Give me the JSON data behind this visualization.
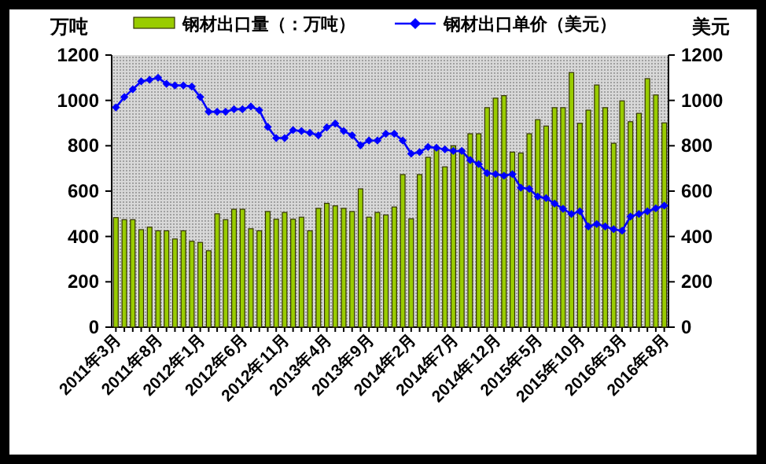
{
  "chart_data": {
    "type": "bar",
    "ylabel": "万吨",
    "y2label": "美元",
    "ylim": [
      0,
      1200
    ],
    "yticks": [
      0,
      200,
      400,
      600,
      800,
      1000,
      1200
    ],
    "y2lim": [
      0,
      1200
    ],
    "y2ticks": [
      0,
      200,
      400,
      600,
      800,
      1000,
      1200
    ],
    "legend": "top",
    "categories": [
      "2011年3月",
      null,
      null,
      null,
      null,
      "2011年8月",
      null,
      null,
      null,
      null,
      "2012年1月",
      null,
      null,
      null,
      null,
      "2012年6月",
      null,
      null,
      null,
      null,
      "2012年11月",
      null,
      null,
      null,
      null,
      "2013年4月",
      null,
      null,
      null,
      null,
      "2013年9月",
      null,
      null,
      null,
      null,
      "2014年2月",
      null,
      null,
      null,
      null,
      "2014年7月",
      null,
      null,
      null,
      null,
      "2014年12月",
      null,
      null,
      null,
      null,
      "2015年5月",
      null,
      null,
      null,
      null,
      "2015年10月",
      null,
      null,
      null,
      null,
      "2016年3月",
      null,
      null,
      null,
      null,
      "2016年8月"
    ],
    "series": [
      {
        "name": "钢材出口量（：万吨）",
        "type": "bar",
        "color": "#99cc00",
        "values": [
          483,
          474,
          474,
          430,
          441,
          425,
          425,
          389,
          425,
          379,
          374,
          337,
          500,
          474,
          520,
          520,
          434,
          425,
          510,
          476,
          506,
          476,
          485,
          425,
          524,
          546,
          535,
          524,
          510,
          610,
          485,
          506,
          495,
          530,
          673,
          478,
          673,
          749,
          784,
          707,
          800,
          784,
          853,
          853,
          968,
          1010,
          1021,
          772,
          768,
          853,
          915,
          887,
          968,
          968,
          1123,
          899,
          957,
          1068,
          968,
          811,
          998,
          906,
          943,
          1096,
          1024,
          901
        ]
      },
      {
        "name": "钢材出口单价（美元）",
        "type": "line",
        "axis": "y2",
        "marker": "diamond",
        "color": "#0000ff",
        "values": [
          969,
          1015,
          1049,
          1084,
          1091,
          1100,
          1073,
          1066,
          1066,
          1061,
          1015,
          950,
          950,
          950,
          961,
          961,
          973,
          957,
          883,
          834,
          834,
          869,
          865,
          857,
          846,
          881,
          898,
          865,
          846,
          802,
          823,
          823,
          853,
          853,
          823,
          765,
          772,
          795,
          791,
          784,
          777,
          777,
          737,
          719,
          679,
          675,
          668,
          675,
          615,
          610,
          576,
          569,
          545,
          522,
          499,
          511,
          444,
          455,
          444,
          432,
          425,
          488,
          499,
          511,
          524,
          536
        ]
      }
    ]
  }
}
